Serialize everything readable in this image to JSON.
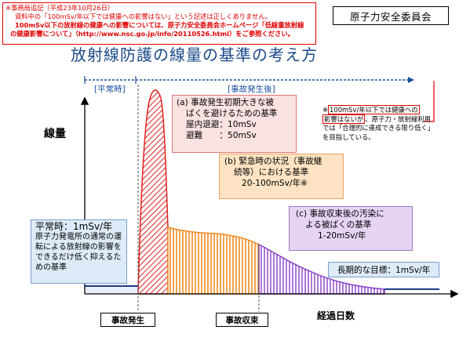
{
  "note": {
    "line1": "※事務局追記（平成23年10月26日）",
    "line2": "資料中の「100mSv/年以下では健康への影響はない」という記述は正しくありません。",
    "line3": "100mSv以下の放射線の健康への影響については、原子力安全委員会ホームページ「低線量放射線",
    "line4": "の健康影響について」（http://www.nsc.go.jp/info/20110526.html）をご参照ください。"
  },
  "organization": "原子力安全委員会",
  "title": "放射線防護の線量の基準の考え方",
  "periods": {
    "normal": "[平常時]",
    "accident": "[事故発生後]"
  },
  "axes": {
    "y_label": "線量",
    "x_label": "経過日数"
  },
  "box_a": {
    "line1": "(a) 事故発生初期大きな被",
    "line2": "ばくを避けるための基準",
    "line3": "屋内退避：10mSv",
    "line4": "避難　　：50mSv"
  },
  "box_b": {
    "line1": "(b) 緊急時の状況（事故継",
    "line2": "続等）における基準",
    "line3": "20-100mSv/年※"
  },
  "box_c": {
    "line1": "(c) 事故収束後の汚染に",
    "line2": "よる被ばくの基準",
    "line3": "1-20mSv/年"
  },
  "box_normal": {
    "heading": "平常時：1mSv/年",
    "body": "原子力発電所の通常の運転による放射線の影響をできるだけ低く抑えるための基準"
  },
  "box_longterm": "長期的な目標：1mSv/年",
  "side_note": {
    "red1": "100mSv/年以下では健康への",
    "red2": "影響はないが",
    "rest": "、原子力・放射線利用では「合理的に達成できる限り低く」を目指している。",
    "prefix": "※"
  },
  "markers": {
    "accident_start": "事故発生",
    "accident_end": "事故収束"
  },
  "colors": {
    "phase_a": "#e02020",
    "phase_b": "#f08a20",
    "phase_c": "#8a3fc8",
    "normal": "#1a3a8a",
    "note_red": "#e00000",
    "title_blue": "#1a4a8a"
  }
}
